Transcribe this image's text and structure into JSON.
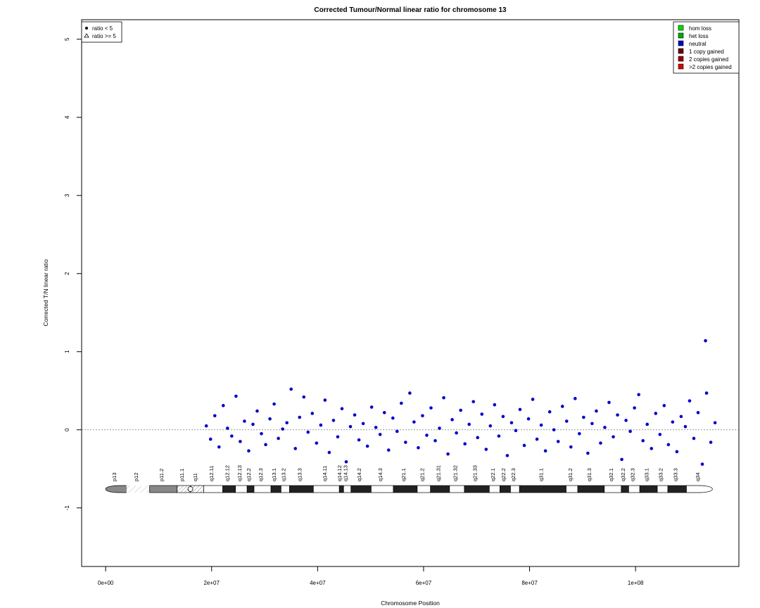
{
  "chart_data": {
    "type": "scatter",
    "title": "Corrected Tumour/Normal linear ratio for chromosome  13",
    "xlabel": "Chromosome Position",
    "ylabel": "Corrected T/N linear ratio",
    "xlim": [
      -4530000,
      119500000
    ],
    "ylim": [
      -1.75,
      5.25
    ],
    "xticks": [
      {
        "value": 0,
        "label": "0e+00"
      },
      {
        "value": 20000000,
        "label": "2e+07"
      },
      {
        "value": 40000000,
        "label": "4e+07"
      },
      {
        "value": 60000000,
        "label": "6e+07"
      },
      {
        "value": 80000000,
        "label": "8e+07"
      },
      {
        "value": 100000000,
        "label": "1e+08"
      }
    ],
    "yticks": [
      -1,
      0,
      1,
      2,
      3,
      4,
      5
    ],
    "hline": 0,
    "series": [
      {
        "name": "ratio < 5",
        "shape": "circle",
        "color": "#0000cc",
        "x": [
          19000000,
          19800000,
          20600000,
          21400000,
          22200000,
          23000000,
          23800000,
          24600000,
          25400000,
          26200000,
          27000000,
          27800000,
          28600000,
          29400000,
          30200000,
          31000000,
          31800000,
          32600000,
          33400000,
          34200000,
          35000000,
          35800000,
          36600000,
          37400000,
          38200000,
          39000000,
          39800000,
          40600000,
          41400000,
          42200000,
          43000000,
          43800000,
          44600000,
          45400000,
          46200000,
          47000000,
          47800000,
          48600000,
          49400000,
          50200000,
          51000000,
          51800000,
          52600000,
          53400000,
          54200000,
          55000000,
          55800000,
          56600000,
          57400000,
          58200000,
          59000000,
          59800000,
          60600000,
          61400000,
          62200000,
          63000000,
          63800000,
          64600000,
          65400000,
          66200000,
          67000000,
          67800000,
          68600000,
          69400000,
          70200000,
          71000000,
          71800000,
          72600000,
          73400000,
          74200000,
          75000000,
          75800000,
          76600000,
          77400000,
          78200000,
          79000000,
          79800000,
          80600000,
          81400000,
          82200000,
          83000000,
          83800000,
          84600000,
          85400000,
          86200000,
          87000000,
          87800000,
          88600000,
          89400000,
          90200000,
          91000000,
          91800000,
          92600000,
          93400000,
          94200000,
          95000000,
          95800000,
          96600000,
          97400000,
          98200000,
          99000000,
          99800000,
          100600000,
          101400000,
          102200000,
          103000000,
          103800000,
          104600000,
          105400000,
          106200000,
          107000000,
          107800000,
          108600000,
          109400000,
          110200000,
          111000000,
          111800000,
          112600000,
          113400000,
          114200000,
          115000000,
          113200000
        ],
        "y": [
          0.05,
          -0.12,
          0.18,
          -0.22,
          0.31,
          0.02,
          -0.08,
          0.43,
          -0.15,
          0.11,
          -0.27,
          0.07,
          0.24,
          -0.05,
          -0.19,
          0.14,
          0.33,
          -0.11,
          0.01,
          0.09,
          0.52,
          -0.24,
          0.16,
          0.42,
          -0.03,
          0.21,
          -0.17,
          0.06,
          0.38,
          -0.29,
          0.12,
          -0.09,
          0.27,
          -0.41,
          0.04,
          0.19,
          -0.13,
          0.08,
          -0.21,
          0.29,
          0.03,
          -0.06,
          0.22,
          -0.26,
          0.15,
          -0.02,
          0.34,
          -0.16,
          0.47,
          0.1,
          -0.23,
          0.18,
          -0.07,
          0.28,
          -0.14,
          0.02,
          0.41,
          -0.31,
          0.13,
          -0.04,
          0.25,
          -0.18,
          0.07,
          0.36,
          -0.1,
          0.2,
          -0.25,
          0.05,
          0.32,
          -0.08,
          0.17,
          -0.33,
          0.09,
          -0.01,
          0.26,
          -0.2,
          0.14,
          0.39,
          -0.12,
          0.06,
          -0.27,
          0.23,
          0,
          -0.15,
          0.3,
          0.11,
          -0.22,
          0.4,
          -0.05,
          0.16,
          -0.3,
          0.08,
          0.24,
          -0.17,
          0.03,
          0.35,
          -0.09,
          0.19,
          -0.38,
          0.12,
          -0.02,
          0.28,
          0.45,
          -0.14,
          0.07,
          -0.24,
          0.21,
          -0.06,
          0.31,
          -0.19,
          0.1,
          -0.28,
          0.17,
          0.04,
          0.37,
          -0.11,
          0.22,
          -0.44,
          0.47,
          -0.16,
          0.09,
          1.14
        ]
      },
      {
        "name": "ratio >= 5",
        "shape": "triangle",
        "color": "#0000cc",
        "x": [],
        "y": []
      }
    ],
    "cn_legend": [
      {
        "label": "hom loss",
        "color": "#00dd00"
      },
      {
        "label": "het loss",
        "color": "#00aa00"
      },
      {
        "label": "neutral",
        "color": "#0000cc"
      },
      {
        "label": "1 copy gained",
        "color": "#660000"
      },
      {
        "label": "2 copies gained",
        "color": "#990000"
      },
      {
        "label": ">2 copies gained",
        "color": "#dd0000"
      }
    ],
    "ideogram": [
      {
        "name": "p13",
        "start": 0,
        "end": 3900000,
        "stain": "gpos50"
      },
      {
        "name": "p12",
        "start": 3900000,
        "end": 8300000,
        "stain": "stalk"
      },
      {
        "name": "p11.2",
        "start": 8300000,
        "end": 13500000,
        "stain": "gpos50"
      },
      {
        "name": "p11.1",
        "start": 13500000,
        "end": 16000000,
        "stain": "acen"
      },
      {
        "name": "q11",
        "start": 16000000,
        "end": 18500000,
        "stain": "acen"
      },
      {
        "name": "q12.11",
        "start": 18500000,
        "end": 22100000,
        "stain": "gneg"
      },
      {
        "name": "q12.12",
        "start": 22100000,
        "end": 24500000,
        "stain": "gpos100"
      },
      {
        "name": "q12.13",
        "start": 24500000,
        "end": 26700000,
        "stain": "gneg"
      },
      {
        "name": "q12.2",
        "start": 26700000,
        "end": 28000000,
        "stain": "gpos100"
      },
      {
        "name": "q12.3",
        "start": 28000000,
        "end": 31200000,
        "stain": "gneg"
      },
      {
        "name": "q13.1",
        "start": 31200000,
        "end": 33100000,
        "stain": "gpos100"
      },
      {
        "name": "q13.2",
        "start": 33100000,
        "end": 34700000,
        "stain": "gneg"
      },
      {
        "name": "q13.3",
        "start": 34700000,
        "end": 39200000,
        "stain": "gpos100"
      },
      {
        "name": "q14.11",
        "start": 39200000,
        "end": 44100000,
        "stain": "gneg"
      },
      {
        "name": "q14.12",
        "start": 44100000,
        "end": 44900000,
        "stain": "gpos100"
      },
      {
        "name": "q14.13",
        "start": 44900000,
        "end": 46300000,
        "stain": "gneg"
      },
      {
        "name": "q14.2",
        "start": 46300000,
        "end": 50100000,
        "stain": "gpos100"
      },
      {
        "name": "q14.3",
        "start": 50100000,
        "end": 54300000,
        "stain": "gneg"
      },
      {
        "name": "q21.1",
        "start": 54300000,
        "end": 58800000,
        "stain": "gpos100"
      },
      {
        "name": "q21.2",
        "start": 58800000,
        "end": 61300000,
        "stain": "gneg"
      },
      {
        "name": "q21.31",
        "start": 61300000,
        "end": 64900000,
        "stain": "gpos100"
      },
      {
        "name": "q21.32",
        "start": 64900000,
        "end": 67700000,
        "stain": "gneg"
      },
      {
        "name": "q21.33",
        "start": 67700000,
        "end": 72400000,
        "stain": "gpos100"
      },
      {
        "name": "q22.1",
        "start": 72400000,
        "end": 74400000,
        "stain": "gneg"
      },
      {
        "name": "q22.2",
        "start": 74400000,
        "end": 76400000,
        "stain": "gpos100"
      },
      {
        "name": "q22.3",
        "start": 76400000,
        "end": 78100000,
        "stain": "gneg"
      },
      {
        "name": "q31.1",
        "start": 78100000,
        "end": 86900000,
        "stain": "gpos100"
      },
      {
        "name": "q31.2",
        "start": 86900000,
        "end": 89100000,
        "stain": "gneg"
      },
      {
        "name": "q31.3",
        "start": 89100000,
        "end": 94100000,
        "stain": "gpos100"
      },
      {
        "name": "q32.1",
        "start": 94100000,
        "end": 97300000,
        "stain": "gneg"
      },
      {
        "name": "q32.2",
        "start": 97300000,
        "end": 98700000,
        "stain": "gpos100"
      },
      {
        "name": "q32.3",
        "start": 98700000,
        "end": 100800000,
        "stain": "gneg"
      },
      {
        "name": "q33.1",
        "start": 100800000,
        "end": 104100000,
        "stain": "gpos100"
      },
      {
        "name": "q33.2",
        "start": 104100000,
        "end": 106100000,
        "stain": "gneg"
      },
      {
        "name": "q33.3",
        "start": 106100000,
        "end": 109600000,
        "stain": "gpos100"
      },
      {
        "name": "q34",
        "start": 109600000,
        "end": 114500000,
        "stain": "gneg"
      }
    ]
  }
}
